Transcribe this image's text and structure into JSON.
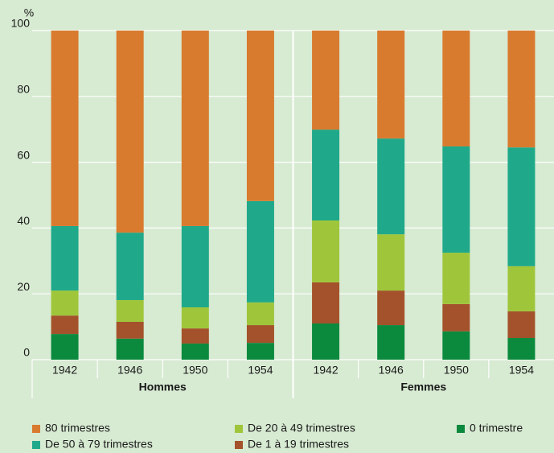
{
  "chart_data": {
    "type": "stacked-bar",
    "y_label": "%",
    "groups": [
      {
        "label": "Hommes",
        "categories": [
          "1942",
          "1946",
          "1950",
          "1954"
        ]
      },
      {
        "label": "Femmes",
        "categories": [
          "1942",
          "1946",
          "1950",
          "1954"
        ]
      }
    ],
    "series": [
      {
        "name": "0 trimestre",
        "color": "#0b8a3e",
        "values": [
          7.8,
          6.4,
          4.9,
          5.1,
          11.0,
          10.5,
          8.6,
          6.6
        ]
      },
      {
        "name": "De 1 à 19 trimestres",
        "color": "#a4522b",
        "values": [
          5.6,
          5.1,
          4.6,
          5.4,
          12.5,
          10.5,
          8.3,
          8.1
        ]
      },
      {
        "name": "De 20 à 49 trimestres",
        "color": "#9fc63b",
        "values": [
          7.6,
          6.6,
          6.4,
          6.9,
          18.8,
          17.1,
          15.6,
          13.7
        ]
      },
      {
        "name": "De 50 à 79 trimestres",
        "color": "#1fa98a",
        "values": [
          19.6,
          20.5,
          24.7,
          30.8,
          27.6,
          29.1,
          32.3,
          36.1
        ]
      },
      {
        "name": "80 trimestres",
        "color": "#d97b2f",
        "values": [
          59.4,
          61.4,
          59.4,
          51.8,
          30.1,
          32.8,
          35.2,
          35.5
        ]
      }
    ],
    "ylim": [
      0,
      100
    ],
    "yticks": [
      0,
      20,
      40,
      60,
      80,
      100
    ],
    "grid": true
  }
}
